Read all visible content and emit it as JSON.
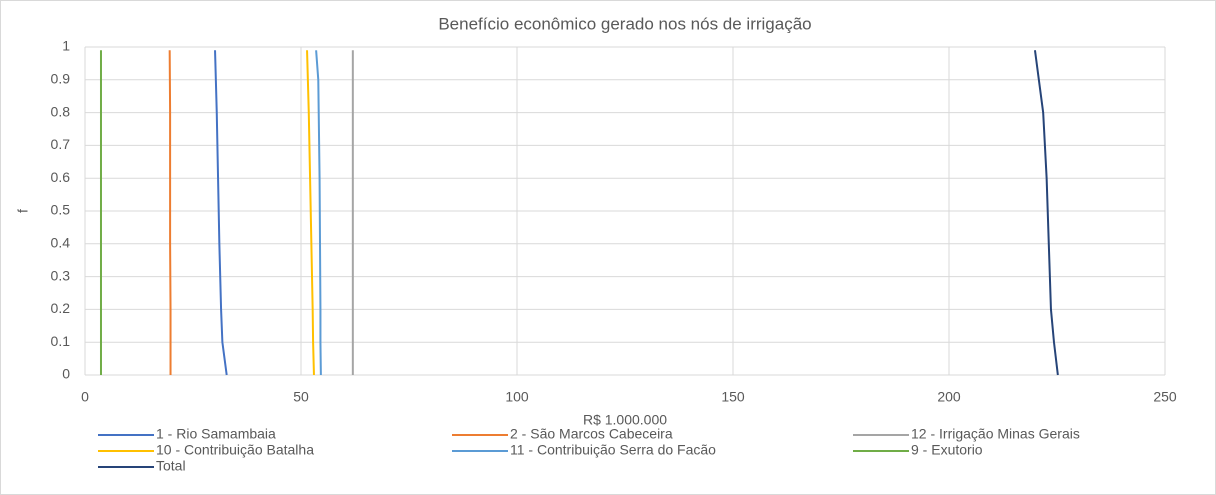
{
  "chart_data": {
    "type": "line",
    "title": "Benefício econômico gerado nos nós de irrigação",
    "x_label": "R$ 1.000.000",
    "y_label": "f",
    "xlim": [
      0,
      250
    ],
    "xticks": [
      0,
      50,
      100,
      150,
      200,
      250
    ],
    "ylim": [
      0,
      1
    ],
    "yticks": [
      0,
      0.1,
      0.2,
      0.3,
      0.4,
      0.5,
      0.6,
      0.7,
      0.8,
      0.9,
      1
    ],
    "grid": true,
    "legend": "bottom",
    "series": [
      {
        "name": "1 - Rio Samambaia",
        "color": "#4472c4",
        "x": [
          32.8,
          31.8,
          31.5,
          31.1,
          30.8,
          30.5,
          30.1
        ],
        "values": [
          0,
          0.1,
          0.2,
          0.4,
          0.6,
          0.8,
          0.99
        ]
      },
      {
        "name": "2 - São Marcos Cabeceira",
        "color": "#ed7d31",
        "x": [
          19.8,
          19.8,
          19.8,
          19.7,
          19.7,
          19.7,
          19.6
        ],
        "values": [
          0,
          0.1,
          0.2,
          0.4,
          0.6,
          0.8,
          0.99
        ]
      },
      {
        "name": "12 - Irrigação Minas Gerais",
        "color": "#a5a5a5",
        "x": [
          62.0,
          62.0,
          62.0,
          62.0,
          62.0,
          62.0,
          62.0
        ],
        "values": [
          0,
          0.1,
          0.2,
          0.4,
          0.6,
          0.8,
          0.99
        ]
      },
      {
        "name": "10 - Contribuição Batalha",
        "color": "#ffc000",
        "x": [
          53.0,
          52.8,
          52.7,
          52.4,
          52.1,
          51.8,
          51.4
        ],
        "values": [
          0,
          0.1,
          0.2,
          0.4,
          0.6,
          0.8,
          0.99
        ]
      },
      {
        "name": "11 - Contribuição Serra do Facão",
        "color": "#5b9bd5",
        "x": [
          54.6,
          54.5,
          54.5,
          54.4,
          54.3,
          54.0,
          53.5
        ],
        "values": [
          0,
          0.1,
          0.2,
          0.4,
          0.6,
          0.9,
          0.99
        ]
      },
      {
        "name": "9 - Exutorio",
        "color": "#70ad47",
        "x": [
          3.7,
          3.7,
          3.7,
          3.7,
          3.7,
          3.7,
          3.7
        ],
        "values": [
          0,
          0.1,
          0.2,
          0.4,
          0.6,
          0.8,
          0.99
        ]
      },
      {
        "name": "Total",
        "color": "#264478",
        "x": [
          225.2,
          224.3,
          223.6,
          223.1,
          222.6,
          221.8,
          219.9
        ],
        "values": [
          0,
          0.1,
          0.2,
          0.4,
          0.6,
          0.8,
          0.99
        ]
      }
    ]
  }
}
